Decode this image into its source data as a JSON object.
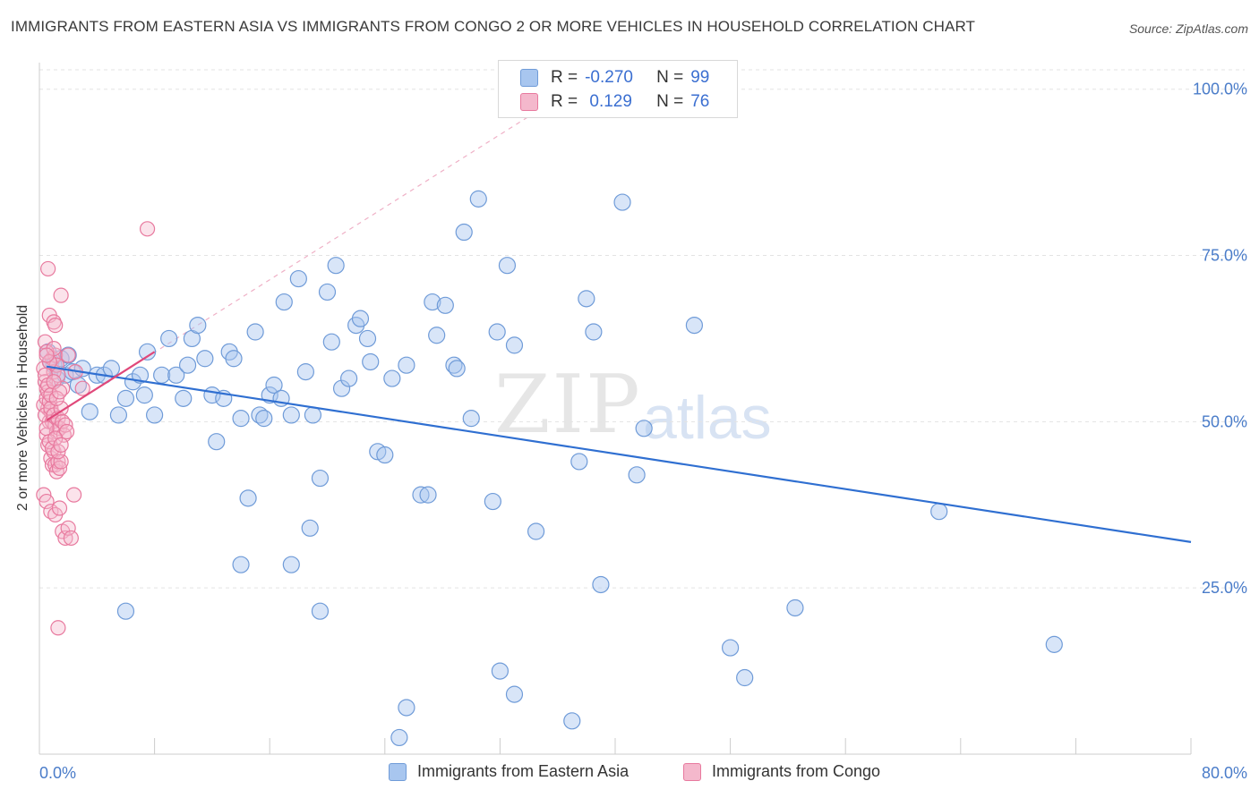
{
  "title": "IMMIGRANTS FROM EASTERN ASIA VS IMMIGRANTS FROM CONGO 2 OR MORE VEHICLES IN HOUSEHOLD CORRELATION CHART",
  "source": "Source: ZipAtlas.com",
  "watermark": {
    "zip": "ZIP",
    "atlas": "atlas"
  },
  "legend": {
    "rows": [
      {
        "r_label": "R =",
        "r_value": "-0.270",
        "n_label": "N =",
        "n_value": "99",
        "color": "#a8c6ef"
      },
      {
        "r_label": "R =",
        "r_value": " 0.129",
        "n_label": "N =",
        "n_value": "76",
        "color": "#f4b8cc"
      }
    ]
  },
  "colors": {
    "blue_fill": "#a8c6ef",
    "blue_stroke": "#6f9bd8",
    "blue_line": "#2f6fd1",
    "pink_fill": "#f4b8cc",
    "pink_stroke": "#e8799e",
    "pink_line": "#e0487a"
  },
  "chart_data": {
    "type": "scatter",
    "title": "IMMIGRANTS FROM EASTERN ASIA VS IMMIGRANTS FROM CONGO 2 OR MORE VEHICLES IN HOUSEHOLD CORRELATION CHART",
    "xlabel": "",
    "ylabel": "2 or more Vehicles in Household",
    "xlim": [
      0,
      80
    ],
    "ylim": [
      0,
      104
    ],
    "x_tick_labels": [
      "0.0%",
      "80.0%"
    ],
    "y_ticks": [
      25,
      50,
      75,
      100
    ],
    "y_tick_labels": [
      "25.0%",
      "50.0%",
      "75.0%",
      "100.0%"
    ],
    "grid": true,
    "legend_position": "top-center",
    "series": [
      {
        "name": "Immigrants from Eastern Asia",
        "color": "#a8c6ef",
        "trend": {
          "x": [
            0.5,
            80
          ],
          "y": [
            58.3,
            31.9
          ]
        },
        "points": [
          [
            0.6,
            60.5
          ],
          [
            0.8,
            59
          ],
          [
            1.0,
            58.5
          ],
          [
            1.2,
            56.5
          ],
          [
            1.5,
            59.5
          ],
          [
            1.8,
            57
          ],
          [
            2,
            60
          ],
          [
            2.3,
            57.5
          ],
          [
            2.7,
            55.5
          ],
          [
            3,
            58
          ],
          [
            3.5,
            51.5
          ],
          [
            4,
            57
          ],
          [
            4.5,
            57
          ],
          [
            5,
            58
          ],
          [
            5.5,
            51
          ],
          [
            6,
            53.5
          ],
          [
            6.5,
            56
          ],
          [
            7,
            57
          ],
          [
            7.3,
            54
          ],
          [
            7.5,
            60.5
          ],
          [
            8,
            51
          ],
          [
            8.5,
            57
          ],
          [
            9,
            62.5
          ],
          [
            9.5,
            57
          ],
          [
            10,
            53.5
          ],
          [
            10.3,
            58.5
          ],
          [
            10.6,
            62.5
          ],
          [
            11,
            64.5
          ],
          [
            11.5,
            59.5
          ],
          [
            12,
            54
          ],
          [
            12.3,
            47
          ],
          [
            12.8,
            53.5
          ],
          [
            13.2,
            60.5
          ],
          [
            13.5,
            59.5
          ],
          [
            14,
            50.5
          ],
          [
            14.5,
            38.5
          ],
          [
            15,
            63.5
          ],
          [
            15.3,
            51
          ],
          [
            15.6,
            50.5
          ],
          [
            16,
            54
          ],
          [
            16.3,
            55.5
          ],
          [
            16.8,
            53.5
          ],
          [
            17,
            68
          ],
          [
            17.5,
            51
          ],
          [
            18,
            71.5
          ],
          [
            18.5,
            57.5
          ],
          [
            18.8,
            34
          ],
          [
            19,
            51
          ],
          [
            19.5,
            41.5
          ],
          [
            20,
            69.5
          ],
          [
            20.3,
            62
          ],
          [
            20.6,
            73.5
          ],
          [
            21,
            55
          ],
          [
            21.5,
            56.5
          ],
          [
            22,
            64.5
          ],
          [
            22.3,
            65.5
          ],
          [
            22.8,
            62.5
          ],
          [
            23,
            59
          ],
          [
            23.5,
            45.5
          ],
          [
            24,
            45
          ],
          [
            24.5,
            56.5
          ],
          [
            25.5,
            58.5
          ],
          [
            26.5,
            39
          ],
          [
            27,
            39
          ],
          [
            27.3,
            68
          ],
          [
            27.6,
            63
          ],
          [
            28.2,
            67.5
          ],
          [
            28.8,
            58.5
          ],
          [
            29,
            58
          ],
          [
            29.5,
            78.5
          ],
          [
            30,
            50.5
          ],
          [
            30.5,
            83.5
          ],
          [
            31.5,
            38
          ],
          [
            31.8,
            63.5
          ],
          [
            32.5,
            73.5
          ],
          [
            33,
            61.5
          ],
          [
            34.5,
            33.5
          ],
          [
            37.5,
            44
          ],
          [
            38,
            68.5
          ],
          [
            38.5,
            63.5
          ],
          [
            39,
            25.5
          ],
          [
            40.5,
            83
          ],
          [
            41.5,
            42
          ],
          [
            42,
            49
          ],
          [
            45.5,
            64.5
          ],
          [
            48,
            16
          ],
          [
            49,
            11.5
          ],
          [
            52.5,
            22
          ],
          [
            62.5,
            36.5
          ],
          [
            70.5,
            16.5
          ],
          [
            6,
            21.5
          ],
          [
            14,
            28.5
          ],
          [
            17.5,
            28.5
          ],
          [
            19.5,
            21.5
          ],
          [
            25,
            2.5
          ],
          [
            25.5,
            7
          ],
          [
            32,
            12.5
          ],
          [
            33,
            9
          ],
          [
            37,
            5
          ]
        ]
      },
      {
        "name": "Immigrants from Congo",
        "color": "#f4b8cc",
        "trend": {
          "x": [
            0.5,
            8
          ],
          "y": [
            50.2,
            60.5
          ]
        },
        "trend_dashed": {
          "x": [
            0.5,
            37
          ],
          "y": [
            50.2,
            100
          ]
        },
        "points": [
          [
            0.3,
            58
          ],
          [
            0.4,
            56
          ],
          [
            0.5,
            55
          ],
          [
            0.6,
            52
          ],
          [
            0.7,
            50
          ],
          [
            0.8,
            51.5
          ],
          [
            0.9,
            59.5
          ],
          [
            1.0,
            57.5
          ],
          [
            1.1,
            60
          ],
          [
            1.2,
            58.5
          ],
          [
            0.5,
            48
          ],
          [
            0.6,
            46.5
          ],
          [
            0.8,
            44.5
          ],
          [
            0.9,
            43.5
          ],
          [
            1.0,
            45.5
          ],
          [
            1.1,
            43.5
          ],
          [
            1.2,
            42.5
          ],
          [
            1.3,
            44
          ],
          [
            1.4,
            43
          ],
          [
            1.5,
            44
          ],
          [
            0.3,
            52.5
          ],
          [
            0.4,
            51
          ],
          [
            0.5,
            53.5
          ],
          [
            0.6,
            54.5
          ],
          [
            0.7,
            53
          ],
          [
            0.8,
            52
          ],
          [
            0.9,
            50
          ],
          [
            1.0,
            51
          ],
          [
            1.1,
            49.5
          ],
          [
            1.2,
            48.5
          ],
          [
            1.3,
            50.5
          ],
          [
            1.4,
            49
          ],
          [
            1.5,
            52
          ],
          [
            1.6,
            50
          ],
          [
            1.7,
            48
          ],
          [
            1.8,
            49.5
          ],
          [
            1.9,
            48.5
          ],
          [
            0.3,
            39
          ],
          [
            0.5,
            38
          ],
          [
            0.8,
            36.5
          ],
          [
            1.1,
            36
          ],
          [
            1.4,
            37
          ],
          [
            1.6,
            33.5
          ],
          [
            1.8,
            32.5
          ],
          [
            2,
            34
          ],
          [
            2.2,
            32.5
          ],
          [
            2.4,
            39
          ],
          [
            0.6,
            73
          ],
          [
            0.7,
            66
          ],
          [
            1.0,
            65
          ],
          [
            1.1,
            64.5
          ],
          [
            1.5,
            69
          ],
          [
            0.4,
            62
          ],
          [
            0.5,
            60.5
          ],
          [
            0.7,
            59
          ],
          [
            1.0,
            61
          ],
          [
            1.3,
            57
          ],
          [
            1.6,
            55
          ],
          [
            2.0,
            60
          ],
          [
            2.5,
            57.5
          ],
          [
            3,
            55
          ],
          [
            1.3,
            19
          ],
          [
            7.5,
            79
          ],
          [
            0.4,
            57
          ],
          [
            0.6,
            55.5
          ],
          [
            0.8,
            54
          ],
          [
            1.0,
            56
          ],
          [
            1.2,
            53.5
          ],
          [
            1.4,
            54.5
          ],
          [
            0.5,
            49
          ],
          [
            0.7,
            47
          ],
          [
            0.9,
            46
          ],
          [
            1.1,
            47.5
          ],
          [
            1.3,
            45.5
          ],
          [
            1.5,
            46.5
          ],
          [
            0.5,
            60
          ]
        ]
      }
    ]
  }
}
